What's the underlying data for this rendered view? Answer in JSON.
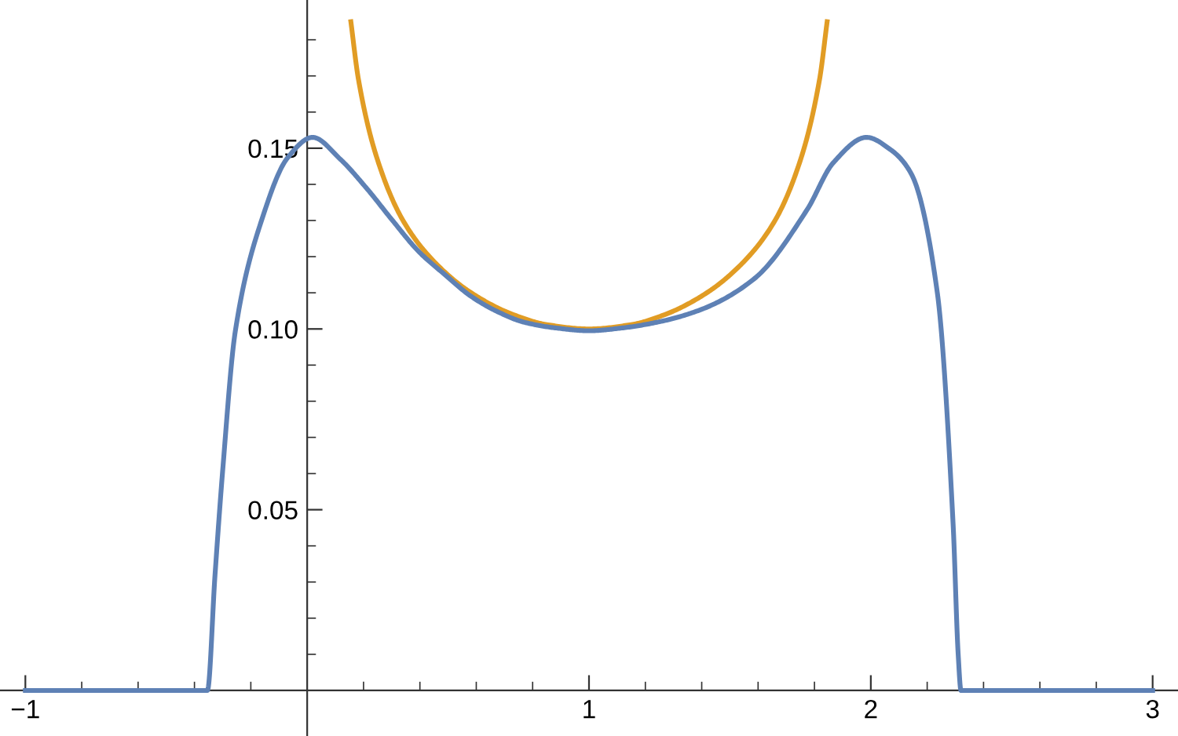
{
  "chart_data": {
    "type": "line",
    "xlim": [
      -1.09,
      3.09
    ],
    "ylim": [
      -0.0126,
      0.191
    ],
    "xticks": [
      {
        "value": -1,
        "label": "−1"
      },
      {
        "value": -0.8,
        "label": null
      },
      {
        "value": -0.6,
        "label": null
      },
      {
        "value": -0.4,
        "label": null
      },
      {
        "value": -0.2,
        "label": null
      },
      {
        "value": 0.2,
        "label": null
      },
      {
        "value": 0.4,
        "label": null
      },
      {
        "value": 0.6,
        "label": null
      },
      {
        "value": 0.8,
        "label": null
      },
      1,
      {
        "value": 1.2,
        "label": null
      },
      {
        "value": 1.4,
        "label": null
      },
      {
        "value": 1.6,
        "label": null
      },
      {
        "value": 1.8,
        "label": null
      },
      2,
      {
        "value": 2.2,
        "label": null
      },
      {
        "value": 2.4,
        "label": null
      },
      {
        "value": 2.6,
        "label": null
      },
      {
        "value": 2.8,
        "label": null
      },
      3
    ],
    "yticks": [
      {
        "value": 0.01,
        "label": null
      },
      {
        "value": 0.02,
        "label": null
      },
      {
        "value": 0.03,
        "label": null
      },
      {
        "value": 0.04,
        "label": null
      },
      0.05,
      {
        "value": 0.06,
        "label": null
      },
      {
        "value": 0.07,
        "label": null
      },
      {
        "value": 0.08,
        "label": null
      },
      {
        "value": 0.09,
        "label": null
      },
      {
        "value": 0.1,
        "label": "0.10"
      },
      {
        "value": 0.11,
        "label": null
      },
      {
        "value": 0.12,
        "label": null
      },
      {
        "value": 0.13,
        "label": null
      },
      {
        "value": 0.14,
        "label": null
      },
      0.15,
      {
        "value": 0.16,
        "label": null
      },
      {
        "value": 0.17,
        "label": null
      },
      {
        "value": 0.18,
        "label": null
      }
    ],
    "grid": false,
    "marker": "none",
    "line_style": "solid",
    "series": [
      {
        "color": "#e19c24",
        "x": [
          0.155,
          0.182,
          0.247,
          0.34,
          0.452,
          0.582,
          0.73,
          0.85,
          1.0,
          1.15,
          1.27,
          1.418,
          1.548,
          1.66,
          1.753,
          1.818,
          1.845
        ],
        "values": [
          0.185,
          0.169,
          0.1474,
          0.13,
          0.1185,
          0.11,
          0.104,
          0.1012,
          0.1,
          0.1012,
          0.104,
          0.11,
          0.1185,
          0.13,
          0.1474,
          0.169,
          0.185
        ]
      },
      {
        "color": "#5e81b5",
        "x": [
          -1,
          -0.354,
          -0.327,
          -0.3,
          -0.255,
          -0.162,
          -0.069,
          0.019,
          0.117,
          0.21,
          0.303,
          0.396,
          0.489,
          0.582,
          0.675,
          0.768,
          0.88,
          1.0,
          1.12,
          1.25,
          1.402,
          1.588,
          1.774,
          1.867,
          1.985,
          2.07,
          2.143,
          2.236,
          2.292,
          2.31,
          2.32,
          3.0
        ],
        "values": [
          0,
          0,
          0.032,
          0.0607,
          0.0994,
          0.13,
          0.1474,
          0.153,
          0.147,
          0.139,
          0.13,
          0.1214,
          0.115,
          0.109,
          0.1048,
          0.1019,
          0.1003,
          0.0995,
          0.1003,
          0.102,
          0.1055,
          0.114,
          0.133,
          0.146,
          0.153,
          0.1496,
          0.143,
          0.11,
          0.046,
          0.01,
          0,
          0
        ]
      }
    ]
  }
}
